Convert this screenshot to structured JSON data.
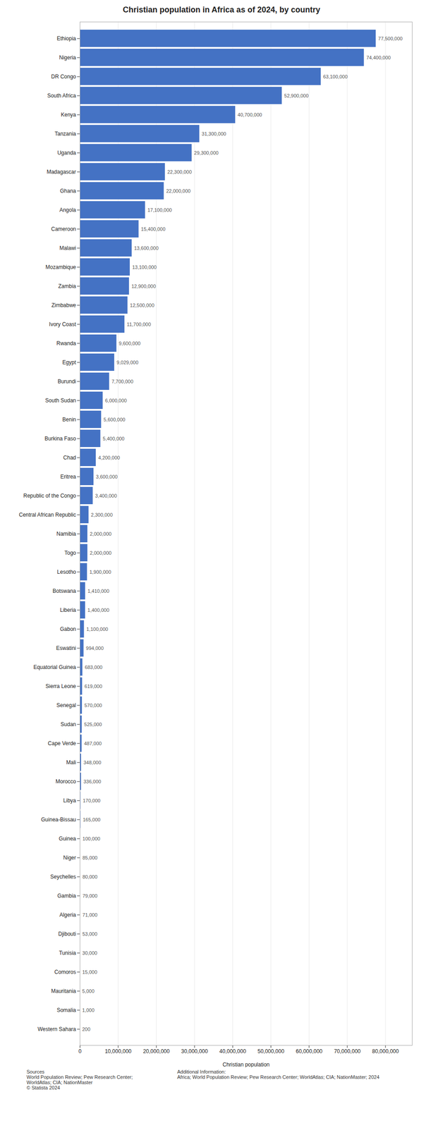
{
  "chart_data": {
    "type": "bar",
    "orientation": "horizontal",
    "title": "Christian population in Africa as of 2024, by country",
    "x_label": "Christian population",
    "color": "#4472c4",
    "grid": true,
    "data_labels": true,
    "categories": [
      "Ethiopia",
      "Nigeria",
      "DR Congo",
      "South Africa",
      "Kenya",
      "Tanzania",
      "Uganda",
      "Madagascar",
      "Ghana",
      "Angola",
      "Cameroon",
      "Malawi",
      "Mozambique",
      "Zambia",
      "Zimbabwe",
      "Ivory Coast",
      "Rwanda",
      "Egypt",
      "Burundi",
      "South Sudan",
      "Benin",
      "Burkina Faso",
      "Chad",
      "Eritrea",
      "Republic of the Congo",
      "Central African Republic",
      "Namibia",
      "Togo",
      "Lesotho",
      "Botswana",
      "Liberia",
      "Gabon",
      "Eswatini",
      "Equatorial Guinea",
      "Sierra Leone",
      "Senegal",
      "Sudan",
      "Cape Verde",
      "Mali",
      "Morocco",
      "Libya",
      "Guinea-Bissau",
      "Guinea",
      "Niger",
      "Seychelles",
      "Gambia",
      "Algeria",
      "Djibouti",
      "Tunisia",
      "Comoros",
      "Mauritania",
      "Somalia",
      "Western Sahara"
    ],
    "values": [
      77500000,
      74400000,
      63100000,
      52900000,
      40700000,
      31300000,
      29300000,
      22300000,
      22000000,
      17100000,
      15400000,
      13600000,
      13100000,
      12900000,
      12500000,
      11700000,
      9600000,
      9029000,
      7700000,
      6000000,
      5600000,
      5400000,
      4200000,
      3600000,
      3400000,
      2300000,
      2000000,
      2000000,
      1900000,
      1410000,
      1400000,
      1100000,
      994000,
      683000,
      619000,
      570000,
      525000,
      487000,
      348000,
      336000,
      170000,
      165000,
      100000,
      85000,
      80000,
      79000,
      71000,
      53000,
      30000,
      15000,
      5000,
      1000,
      200
    ],
    "value_labels": [
      "77,500,000",
      "74,400,000",
      "63,100,000",
      "52,900,000",
      "40,700,000",
      "31,300,000",
      "29,300,000",
      "22,300,000",
      "22,000,000",
      "17,100,000",
      "15,400,000",
      "13,600,000",
      "13,100,000",
      "12,900,000",
      "12,500,000",
      "11,700,000",
      "9,600,000",
      "9,029,000",
      "7,700,000",
      "6,000,000",
      "5,600,000",
      "5,400,000",
      "4,200,000",
      "3,600,000",
      "3,400,000",
      "2,300,000",
      "2,000,000",
      "2,000,000",
      "1,900,000",
      "1,410,000",
      "1,400,000",
      "1,100,000",
      "994,000",
      "683,000",
      "619,000",
      "570,000",
      "525,000",
      "487,000",
      "348,000",
      "336,000",
      "170,000",
      "165,000",
      "100,000",
      "85,000",
      "80,000",
      "79,000",
      "71,000",
      "53,000",
      "30,000",
      "15,000",
      "5,000",
      "1,000",
      "200"
    ],
    "xlim": [
      0,
      87000000
    ],
    "xticks": [
      0,
      {
        "value": 10000000,
        "label": "10,000,000"
      },
      {
        "value": 20000000,
        "label": "20,000,000"
      },
      {
        "value": 30000000,
        "label": "30,000,000"
      },
      {
        "value": 40000000,
        "label": "40,000,000"
      },
      {
        "value": 50000000,
        "label": "50,000,000"
      },
      {
        "value": 60000000,
        "label": "60,000,000"
      },
      {
        "value": 70000000,
        "label": "70,000,000"
      },
      {
        "value": 80000000,
        "label": "80,000,000"
      }
    ],
    "annotations": [
      "Sources\nWorld Population Review; Pew Research Center;\nWorldAtlas; CIA; NationMaster\n© Statista 2024",
      "Additional Information:\nAfrica; World Population Review; Pew Research Center; WorldAtlas; CIA; NationMaster; 2024"
    ]
  }
}
